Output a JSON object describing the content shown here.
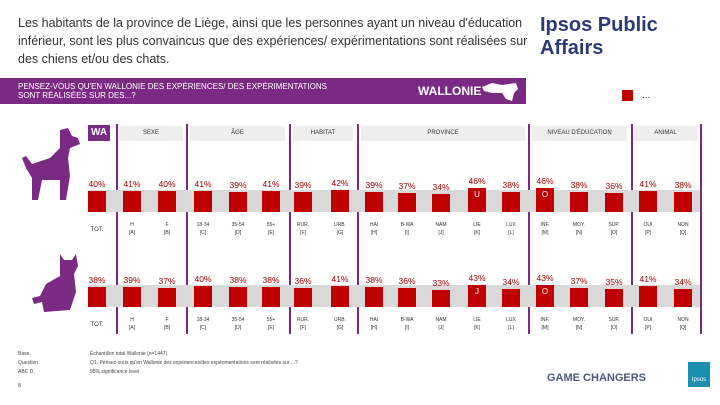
{
  "title": "Les habitants de la province de Liège, ainsi que les personnes ayant un niveau d'éducation inférieur, sont les plus convaincus que des expériences/ expérimentations sont réalisées sur des chiens et/ou des chats.",
  "brand": "Ipsos Public Affairs",
  "banner": {
    "question": "PENSEZ-VOUS QU'EN WALLONIE DES EXPÉRIENCES/ DES EXPÉRIMENTATIONS SONT RÉALISÉES SUR DES...?",
    "region": "WALLONIE"
  },
  "legend": {
    "label": "...",
    "color": "#c00000"
  },
  "wa_label": "WA",
  "groups": [
    "SEXE",
    "ÂGE",
    "HABITAT",
    "PROVINCE",
    "NIVEAU D'ÉDUCATION",
    "ANIMAL"
  ],
  "columns": [
    [
      "TOT.",
      ""
    ],
    [
      "H",
      "[A]"
    ],
    [
      "F",
      "[B]"
    ],
    [
      "18-34",
      "[C]"
    ],
    [
      "35-54",
      "[D]"
    ],
    [
      "55+",
      "[E]"
    ],
    [
      "RUR.",
      "[F]"
    ],
    [
      "URB.",
      "[G]"
    ],
    [
      "HAI",
      "[H]"
    ],
    [
      "B-WA",
      "[I]"
    ],
    [
      "NAM",
      "[J]"
    ],
    [
      "LIE",
      "[K]"
    ],
    [
      "LUX",
      "[L]"
    ],
    [
      "INF.",
      "[M]"
    ],
    [
      "MOY.",
      "[N]"
    ],
    [
      "SUP.",
      "[O]"
    ],
    [
      "OUI",
      "[P]"
    ],
    [
      "NON",
      "[Q]"
    ]
  ],
  "rows": [
    {
      "animal": "dog",
      "values": [
        40,
        41,
        40,
        41,
        39,
        41,
        39,
        42,
        39,
        37,
        34,
        46,
        38,
        46,
        38,
        36,
        41,
        38
      ],
      "sig": {
        "11": "U",
        "13": "O"
      }
    },
    {
      "animal": "cat",
      "values": [
        38,
        39,
        37,
        40,
        38,
        38,
        36,
        41,
        38,
        36,
        33,
        43,
        34,
        43,
        37,
        35,
        41,
        34
      ],
      "sig": {
        "11": "J",
        "13": "O"
      }
    }
  ],
  "footer": {
    "base_label": "Base.",
    "base": "Échantillon total Wallonie (n=1447)",
    "question_label": "Question.",
    "question": "Q1. Pensez-vous qu'en Wallonie des expériences/des expérimentations sont réalisées sur ...?",
    "abcd_label": "ABC D.",
    "abcd": "95% significance level",
    "page": "8",
    "tagline": "GAME CHANGERS",
    "logo": "Ipsos"
  },
  "colors": {
    "purple": "#7a2a83",
    "bar": "#c00000",
    "value": "#a00000"
  }
}
